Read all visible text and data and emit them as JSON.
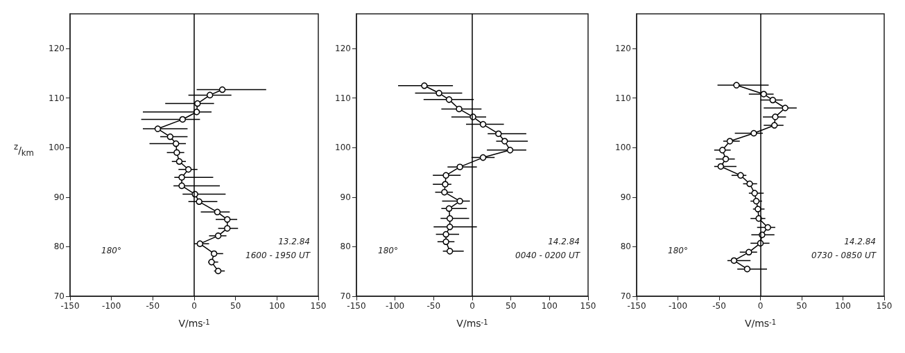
{
  "chart_data": [
    {
      "type": "line",
      "xlabel": "V/ms$^{-1}$",
      "ylabel": "$^{z}$/$_{km}$",
      "xlim": [
        -150,
        150
      ],
      "xticks": [
        -150,
        -100,
        -50,
        0,
        50,
        100,
        150
      ],
      "ylim": [
        70,
        127
      ],
      "yticks": [
        70,
        80,
        90,
        100,
        110,
        120
      ],
      "grid": false,
      "marker": "circle",
      "ref_lines": [
        {
          "axis": "x",
          "value": 0,
          "color": "#000000"
        }
      ],
      "annotations": [
        "180°",
        "13.2.84",
        "1600 - 1950 UT"
      ],
      "series": [
        {
          "color": "#000000",
          "x": [
            34,
            19,
            4,
            3,
            -14,
            -44,
            -29,
            -22,
            -21,
            -18,
            -7,
            -15,
            -15,
            1,
            6,
            28,
            40,
            40,
            29,
            7,
            24,
            21,
            29
          ],
          "values": [
            111.7,
            110.6,
            108.9,
            107.2,
            105.7,
            103.8,
            102.2,
            100.8,
            99.0,
            97.2,
            95.6,
            94.0,
            92.3,
            90.6,
            89.1,
            87.0,
            85.5,
            83.7,
            82.2,
            80.6,
            78.6,
            76.9,
            75.1
          ],
          "xerrors": [
            [
              3,
              87
            ],
            [
              -7,
              45
            ],
            [
              -35,
              24
            ],
            [
              -62,
              21
            ],
            [
              -64,
              7
            ],
            [
              -62,
              -8
            ],
            [
              -41,
              -8
            ],
            [
              -54,
              -10
            ],
            [
              -33,
              -12
            ],
            [
              -27,
              -10
            ],
            [
              -19,
              4
            ],
            [
              -24,
              23
            ],
            [
              -25,
              31
            ],
            [
              -14,
              38
            ],
            [
              -7,
              28
            ],
            [
              8,
              43
            ],
            [
              26,
              52
            ],
            [
              29,
              53
            ],
            [
              18,
              39
            ],
            [
              0,
              18
            ],
            [
              21,
              35
            ],
            [
              17,
              29
            ],
            [
              24,
              37
            ]
          ]
        }
      ]
    },
    {
      "type": "line",
      "xlabel": "V/ms$^{-1}$",
      "xlim": [
        -150,
        150
      ],
      "xticks": [
        -150,
        -100,
        -50,
        0,
        50,
        100,
        150
      ],
      "ylim": [
        70,
        127
      ],
      "yticks": [
        70,
        80,
        90,
        100,
        110,
        120
      ],
      "grid": false,
      "marker": "circle",
      "ref_lines": [
        {
          "axis": "x",
          "value": 0,
          "color": "#000000"
        }
      ],
      "annotations": [
        "180°",
        "14.2.84",
        "0040 - 0200 UT"
      ],
      "series": [
        {
          "color": "#000000",
          "x": [
            -62,
            -43,
            -30,
            -17,
            1,
            14,
            34,
            42,
            49,
            14,
            -16,
            -34,
            -35,
            -36,
            -16,
            -30,
            -29,
            -29,
            -34,
            -34,
            -29
          ],
          "values": [
            112.5,
            111.0,
            109.7,
            107.8,
            106.2,
            104.7,
            102.8,
            101.3,
            99.5,
            98.0,
            96.1,
            94.4,
            92.6,
            91.0,
            89.2,
            87.7,
            85.7,
            84.0,
            82.5,
            81.0,
            79.1
          ],
          "xerrors": [
            [
              -96,
              -25
            ],
            [
              -74,
              -13
            ],
            [
              -63,
              2
            ],
            [
              -40,
              12
            ],
            [
              -27,
              18
            ],
            [
              -8,
              41
            ],
            [
              20,
              70
            ],
            [
              31,
              72
            ],
            [
              19,
              70
            ],
            [
              -1,
              29
            ],
            [
              -32,
              6
            ],
            [
              -51,
              -15
            ],
            [
              -51,
              -27
            ],
            [
              -48,
              -25
            ],
            [
              -39,
              -3
            ],
            [
              -40,
              -7
            ],
            [
              -41,
              -4
            ],
            [
              -50,
              6
            ],
            [
              -47,
              -17
            ],
            [
              -45,
              -23
            ],
            [
              -38,
              -11
            ]
          ]
        }
      ]
    },
    {
      "type": "line",
      "xlabel": "V/ms$^{-1}$",
      "xlim": [
        -150,
        150
      ],
      "xticks": [
        -150,
        -100,
        -50,
        0,
        50,
        100,
        150
      ],
      "ylim": [
        70,
        127
      ],
      "yticks": [
        70,
        80,
        90,
        100,
        110,
        120
      ],
      "grid": false,
      "marker": "circle",
      "ref_lines": [
        {
          "axis": "x",
          "value": 0,
          "color": "#000000"
        }
      ],
      "annotations": [
        "180°",
        "14.2.84",
        "0730 - 0850 UT"
      ],
      "series": [
        {
          "color": "#000000",
          "x": [
            -29,
            4,
            15,
            30,
            18,
            17,
            -8,
            -37,
            -46,
            -42,
            -48,
            -24,
            -13,
            -7,
            -5,
            -3,
            -2,
            9,
            2,
            0,
            -14,
            -32,
            -16
          ],
          "values": [
            112.6,
            110.8,
            109.6,
            108.0,
            106.2,
            104.5,
            102.9,
            101.3,
            99.5,
            97.7,
            96.2,
            94.4,
            92.7,
            90.8,
            89.2,
            87.6,
            85.7,
            83.9,
            82.4,
            80.7,
            78.9,
            77.2,
            75.5
          ],
          "xerrors": [
            [
              -52,
              10
            ],
            [
              -14,
              16
            ],
            [
              0,
              27
            ],
            [
              4,
              44
            ],
            [
              3,
              31
            ],
            [
              4,
              28
            ],
            [
              -31,
              3
            ],
            [
              -45,
              -25
            ],
            [
              -56,
              -36
            ],
            [
              -54,
              -31
            ],
            [
              -56,
              -29
            ],
            [
              -35,
              -17
            ],
            [
              -21,
              -4
            ],
            [
              -14,
              4
            ],
            [
              -12,
              2
            ],
            [
              -9,
              5
            ],
            [
              -12,
              6
            ],
            [
              -4,
              18
            ],
            [
              -11,
              17
            ],
            [
              -12,
              11
            ],
            [
              -25,
              -4
            ],
            [
              -40,
              -12
            ],
            [
              -28,
              8
            ]
          ]
        }
      ]
    }
  ]
}
